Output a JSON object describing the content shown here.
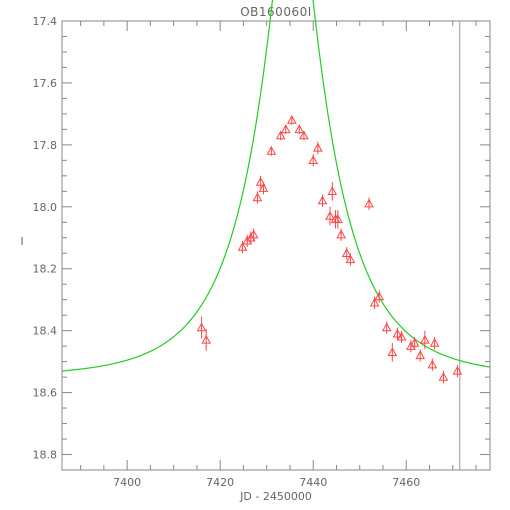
{
  "chart_data": {
    "type": "scatter",
    "title": "OB160060I",
    "xlabel": "JD - 2450000",
    "ylabel": "I",
    "xlim": [
      7386,
      7478
    ],
    "ylim": [
      18.85,
      17.4
    ],
    "y_inverted": true,
    "x_ticks": [
      7400,
      7420,
      7440,
      7460
    ],
    "x_tick_labels": [
      "7400",
      "7420",
      "7440",
      "7460"
    ],
    "y_ticks": [
      17.4,
      17.6,
      17.8,
      18.0,
      18.2,
      18.4,
      18.6,
      18.8
    ],
    "y_tick_labels": [
      "17.4",
      "17.6",
      "17.8",
      "18.0",
      "18.2",
      "18.4",
      "18.6",
      "18.8"
    ],
    "grid": false,
    "vertical_marker_x": 7471.5,
    "colors": {
      "points": "#ff4444",
      "model": "#22cc22",
      "axes": "#888888",
      "marker": "#999999"
    },
    "model_fit": {
      "name": "",
      "type": "microlensing",
      "t0": 7435.6,
      "u0": 0.22,
      "tE": 17.0,
      "baseline": 18.55,
      "max_magnification": 4.6,
      "x_range": [
        7386,
        7478
      ]
    },
    "observations": {
      "name": "",
      "marker": "triangle",
      "x": [
        7416.0,
        7417.0,
        7424.8,
        7425.8,
        7426.6,
        7427.2,
        7428.0,
        7428.7,
        7429.3,
        7431.0,
        7433.0,
        7434.1,
        7435.4,
        7437.0,
        7438.0,
        7440.0,
        7441.0,
        7442.0,
        7443.6,
        7444.1,
        7444.8,
        7445.3,
        7446.0,
        7447.2,
        7448.0,
        7452.0,
        7453.2,
        7454.2,
        7455.8,
        7457.0,
        7458.1,
        7459.0,
        7461.0,
        7461.8,
        7463.0,
        7464.0,
        7465.6,
        7466.1,
        7468.0,
        7471.0
      ],
      "y": [
        18.39,
        18.43,
        18.13,
        18.11,
        18.1,
        18.09,
        17.97,
        17.92,
        17.94,
        17.82,
        17.77,
        17.75,
        17.72,
        17.75,
        17.77,
        17.85,
        17.81,
        17.98,
        18.03,
        17.95,
        18.04,
        18.04,
        18.09,
        18.15,
        18.17,
        17.99,
        18.31,
        18.29,
        18.39,
        18.47,
        18.41,
        18.42,
        18.45,
        18.44,
        18.48,
        18.43,
        18.51,
        18.44,
        18.55,
        18.53
      ],
      "y_err": [
        0.035,
        0.035,
        0.02,
        0.02,
        0.02,
        0.02,
        0.02,
        0.02,
        0.02,
        0.015,
        0.015,
        0.015,
        0.015,
        0.015,
        0.015,
        0.02,
        0.02,
        0.02,
        0.03,
        0.03,
        0.03,
        0.03,
        0.02,
        0.02,
        0.02,
        0.02,
        0.02,
        0.02,
        0.02,
        0.03,
        0.02,
        0.02,
        0.02,
        0.02,
        0.02,
        0.03,
        0.02,
        0.02,
        0.02,
        0.02
      ]
    }
  }
}
